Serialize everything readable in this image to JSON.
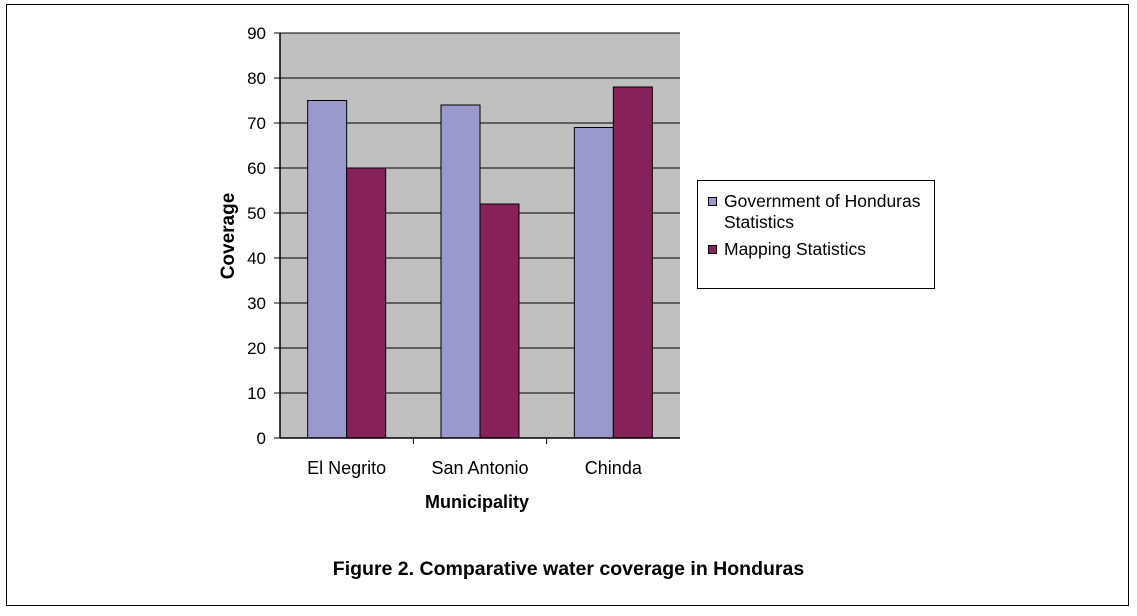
{
  "caption": "Figure 2. Comparative water coverage in Honduras",
  "chart_data": {
    "type": "bar",
    "categories": [
      "El Negrito",
      "San Antonio",
      "Chinda"
    ],
    "series": [
      {
        "name": "Government of Honduras Statistics",
        "values": [
          75,
          74,
          69
        ],
        "color": "#9999cc"
      },
      {
        "name": "Mapping Statistics",
        "values": [
          60,
          52,
          78
        ],
        "color": "#86215a"
      }
    ],
    "xlabel": "Municipality",
    "ylabel": "Coverage",
    "ylim": [
      0,
      90
    ],
    "yticks": [
      0,
      10,
      20,
      30,
      40,
      50,
      60,
      70,
      80,
      90
    ],
    "grid": true,
    "legend": "right",
    "plot_background": "#c0c0c0"
  }
}
